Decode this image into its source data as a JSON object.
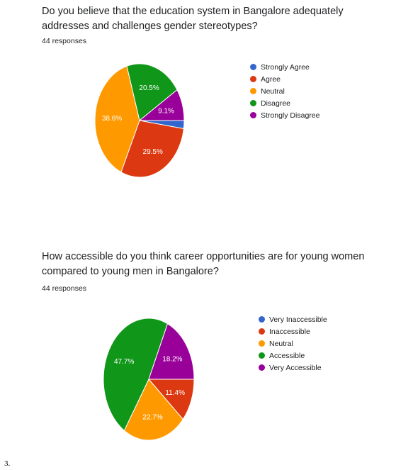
{
  "chart_data": [
    {
      "type": "pie",
      "title": "Do you believe that the education system in Bangalore adequately addresses and challenges gender stereotypes?",
      "responses_label": "44 responses",
      "slices": [
        {
          "label": "Strongly Agree",
          "value": 2.3,
          "color": "#3366cc",
          "data_label": ""
        },
        {
          "label": "Agree",
          "value": 29.5,
          "color": "#dc3912",
          "data_label": "29.5%"
        },
        {
          "label": "Neutral",
          "value": 38.6,
          "color": "#ff9900",
          "data_label": "38.6%"
        },
        {
          "label": "Disagree",
          "value": 20.5,
          "color": "#109618",
          "data_label": "20.5%"
        },
        {
          "label": "Strongly Disagree",
          "value": 9.1,
          "color": "#990099",
          "data_label": "9.1%"
        }
      ],
      "legend_placement": "right"
    },
    {
      "type": "pie",
      "title": "How accessible do you think career opportunities are for young women compared to young men in Bangalore?",
      "responses_label": "44 responses",
      "slices": [
        {
          "label": "Very Inaccessible",
          "value": 0,
          "color": "#3366cc",
          "data_label": ""
        },
        {
          "label": "Inaccessible",
          "value": 11.4,
          "color": "#dc3912",
          "data_label": "11.4%"
        },
        {
          "label": "Neutral",
          "value": 22.7,
          "color": "#ff9900",
          "data_label": "22.7%"
        },
        {
          "label": "Accessible",
          "value": 47.7,
          "color": "#109618",
          "data_label": "47.7%"
        },
        {
          "label": "Very Accessible",
          "value": 18.2,
          "color": "#990099",
          "data_label": "18.2%"
        }
      ],
      "legend_placement": "right"
    }
  ],
  "footnote": "3."
}
